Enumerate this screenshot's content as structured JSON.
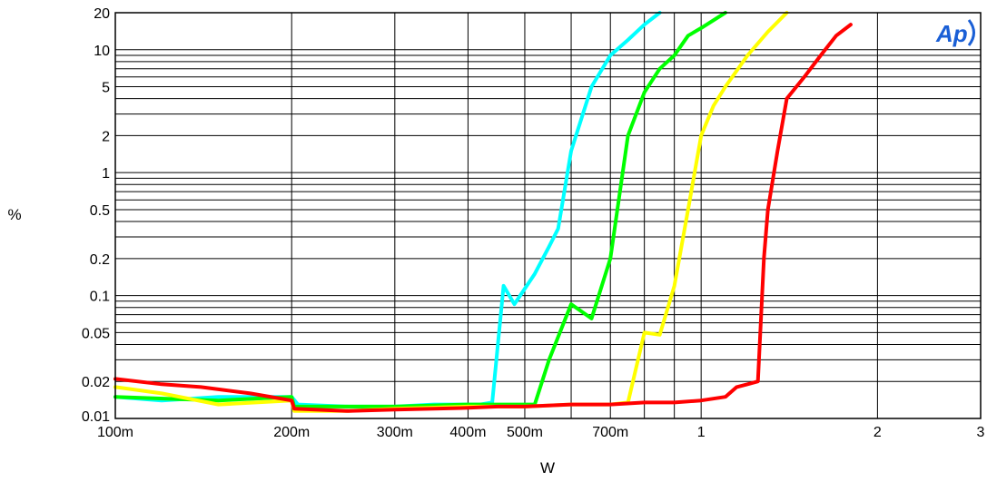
{
  "chart_data": {
    "type": "line",
    "title": "",
    "xlabel": "W",
    "ylabel": "%",
    "x_scale": "log",
    "y_scale": "log",
    "xlim": [
      0.1,
      3
    ],
    "ylim": [
      0.01,
      20
    ],
    "grid": true,
    "legend": "none",
    "x_ticks": [
      {
        "value": 0.1,
        "label": "100m"
      },
      {
        "value": 0.2,
        "label": "200m"
      },
      {
        "value": 0.3,
        "label": "300m"
      },
      {
        "value": 0.4,
        "label": "400m"
      },
      {
        "value": 0.5,
        "label": "500m"
      },
      {
        "value": 0.7,
        "label": "700m"
      },
      {
        "value": 1,
        "label": "1"
      },
      {
        "value": 2,
        "label": "2"
      },
      {
        "value": 3,
        "label": "3"
      }
    ],
    "y_ticks": [
      {
        "value": 0.01,
        "label": "0.01"
      },
      {
        "value": 0.02,
        "label": "0.02"
      },
      {
        "value": 0.05,
        "label": "0.05"
      },
      {
        "value": 0.1,
        "label": "0.1"
      },
      {
        "value": 0.2,
        "label": "0.2"
      },
      {
        "value": 0.5,
        "label": "0.5"
      },
      {
        "value": 1,
        "label": "1"
      },
      {
        "value": 2,
        "label": "2"
      },
      {
        "value": 5,
        "label": "5"
      },
      {
        "value": 10,
        "label": "10"
      },
      {
        "value": 20,
        "label": "20"
      }
    ],
    "series": [
      {
        "color": "#00ffff",
        "points": [
          [
            0.1,
            0.015
          ],
          [
            0.12,
            0.014
          ],
          [
            0.15,
            0.015
          ],
          [
            0.2,
            0.015
          ],
          [
            0.205,
            0.013
          ],
          [
            0.25,
            0.0125
          ],
          [
            0.3,
            0.0125
          ],
          [
            0.35,
            0.013
          ],
          [
            0.42,
            0.013
          ],
          [
            0.44,
            0.0135
          ],
          [
            0.46,
            0.12
          ],
          [
            0.48,
            0.085
          ],
          [
            0.52,
            0.15
          ],
          [
            0.55,
            0.25
          ],
          [
            0.57,
            0.35
          ],
          [
            0.6,
            1.5
          ],
          [
            0.65,
            5
          ],
          [
            0.7,
            9
          ],
          [
            0.75,
            12
          ],
          [
            0.8,
            16
          ],
          [
            0.85,
            20
          ]
        ]
      },
      {
        "color": "#00ff00",
        "points": [
          [
            0.1,
            0.015
          ],
          [
            0.15,
            0.014
          ],
          [
            0.2,
            0.015
          ],
          [
            0.202,
            0.0125
          ],
          [
            0.25,
            0.0125
          ],
          [
            0.3,
            0.0125
          ],
          [
            0.4,
            0.013
          ],
          [
            0.5,
            0.013
          ],
          [
            0.52,
            0.013
          ],
          [
            0.55,
            0.03
          ],
          [
            0.6,
            0.085
          ],
          [
            0.65,
            0.065
          ],
          [
            0.7,
            0.2
          ],
          [
            0.75,
            2
          ],
          [
            0.8,
            4.5
          ],
          [
            0.85,
            7
          ],
          [
            0.9,
            9
          ],
          [
            0.95,
            13
          ],
          [
            1.0,
            15
          ],
          [
            1.1,
            20
          ]
        ]
      },
      {
        "color": "#ffff00",
        "points": [
          [
            0.1,
            0.018
          ],
          [
            0.12,
            0.016
          ],
          [
            0.15,
            0.013
          ],
          [
            0.2,
            0.014
          ],
          [
            0.202,
            0.0115
          ],
          [
            0.25,
            0.0115
          ],
          [
            0.3,
            0.012
          ],
          [
            0.4,
            0.0125
          ],
          [
            0.5,
            0.0125
          ],
          [
            0.6,
            0.013
          ],
          [
            0.7,
            0.013
          ],
          [
            0.75,
            0.0135
          ],
          [
            0.8,
            0.05
          ],
          [
            0.85,
            0.048
          ],
          [
            0.9,
            0.12
          ],
          [
            0.95,
            0.5
          ],
          [
            1.0,
            2
          ],
          [
            1.05,
            3.5
          ],
          [
            1.1,
            5
          ],
          [
            1.2,
            9
          ],
          [
            1.3,
            14
          ],
          [
            1.4,
            20
          ]
        ]
      },
      {
        "color": "#ff0000",
        "points": [
          [
            0.1,
            0.021
          ],
          [
            0.12,
            0.019
          ],
          [
            0.14,
            0.018
          ],
          [
            0.17,
            0.016
          ],
          [
            0.2,
            0.014
          ],
          [
            0.202,
            0.012
          ],
          [
            0.25,
            0.0115
          ],
          [
            0.3,
            0.0118
          ],
          [
            0.35,
            0.012
          ],
          [
            0.4,
            0.0122
          ],
          [
            0.45,
            0.0125
          ],
          [
            0.5,
            0.0125
          ],
          [
            0.6,
            0.013
          ],
          [
            0.7,
            0.013
          ],
          [
            0.8,
            0.0135
          ],
          [
            0.9,
            0.0135
          ],
          [
            1.0,
            0.014
          ],
          [
            1.1,
            0.015
          ],
          [
            1.15,
            0.018
          ],
          [
            1.2,
            0.019
          ],
          [
            1.25,
            0.02
          ],
          [
            1.28,
            0.2
          ],
          [
            1.3,
            0.5
          ],
          [
            1.35,
            1.5
          ],
          [
            1.4,
            4
          ],
          [
            1.5,
            6
          ],
          [
            1.6,
            9
          ],
          [
            1.7,
            13
          ],
          [
            1.8,
            16
          ]
        ]
      }
    ]
  }
}
